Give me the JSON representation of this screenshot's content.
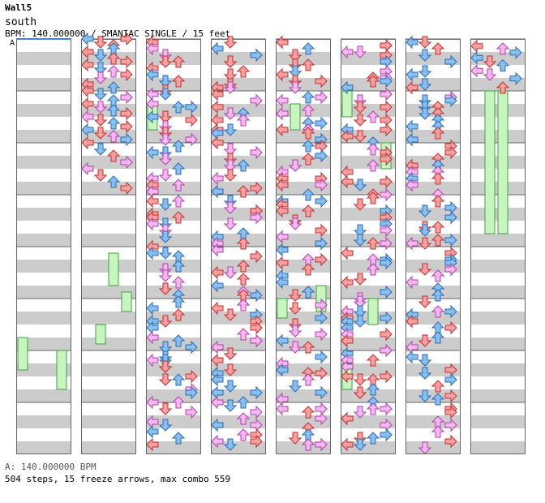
{
  "song": {
    "title": "Wall5",
    "artist": "south",
    "info": "BPM: 140.000000 / SMANIAC SINGLE / 15 feet",
    "section_marker": "A"
  },
  "footer": {
    "bpm_line": "A: 140.000000 BPM",
    "stats_line": "504 steps, 15 freeze arrows, max combo 559"
  },
  "colors": {
    "quarter_fill": "#f4a0a0",
    "quarter_stroke": "#c03030",
    "eighth_fill": "#88bff0",
    "eighth_stroke": "#2a6cb0",
    "sixteenth_fill": "#f4b8f0",
    "sixteenth_stroke": "#b040a8",
    "freeze_fill": "#c8f4c0",
    "freeze_stroke": "#40a040",
    "measure_shade": "#cccccc",
    "column_border": "#666666",
    "start_line": "#4080ff"
  },
  "chart_data": {
    "type": "dance-step-chart",
    "lanes": [
      "left",
      "down",
      "up",
      "right"
    ],
    "columns": 8,
    "measures_per_column": 8,
    "beats_per_measure": 4,
    "total_steps": 504,
    "freeze_arrows": 15,
    "max_combo": 559,
    "bpm": 140,
    "notes": [
      [
        [
          37.0,
          "L",
          "q"
        ],
        [
          37.0,
          "R",
          "e"
        ],
        [
          37.5,
          "D",
          "q"
        ],
        [
          37.5,
          "U",
          "e"
        ],
        [
          38.0,
          "U",
          "q"
        ],
        [
          38.25,
          "R",
          "q"
        ],
        [
          38.5,
          "L",
          "q"
        ],
        [
          38.75,
          "R",
          "e"
        ],
        [
          39.0,
          "L",
          "e"
        ],
        [
          39.5,
          "D",
          "q"
        ],
        [
          39.75,
          "U",
          "e"
        ],
        [
          40.0,
          "L",
          "q"
        ],
        [
          40.25,
          "D",
          "q"
        ],
        [
          40.5,
          "U",
          "e"
        ],
        [
          41.0,
          "D",
          "q"
        ],
        [
          41.5,
          "L",
          "q"
        ],
        [
          41.75,
          "U",
          "e"
        ],
        [
          42.0,
          "R",
          "s"
        ],
        [
          42.25,
          "R",
          "s"
        ],
        [
          42.5,
          "D",
          "e"
        ],
        [
          42.75,
          "R",
          "e"
        ]
      ],
      [
        [
          0.0,
          "L",
          "e"
        ],
        [
          0.0,
          "R",
          "q"
        ],
        [
          0.25,
          "D",
          "q"
        ],
        [
          0.5,
          "U",
          "q"
        ],
        [
          0.75,
          "U",
          "e"
        ],
        [
          1.0,
          "L",
          "q"
        ],
        [
          1.25,
          "D",
          "e"
        ],
        [
          1.5,
          "U",
          "q"
        ],
        [
          1.75,
          "R",
          "q"
        ],
        [
          2.0,
          "L",
          "q"
        ],
        [
          2.25,
          "D",
          "e"
        ],
        [
          2.5,
          "U",
          "s"
        ],
        [
          2.75,
          "R",
          "q"
        ],
        [
          3.0,
          "D",
          "s"
        ],
        [
          3.5,
          "L",
          "q"
        ],
        [
          3.75,
          "U",
          "e"
        ],
        [
          4.0,
          "L",
          "q"
        ],
        [
          4.25,
          "D",
          "e"
        ],
        [
          4.5,
          "R",
          "s"
        ],
        [
          4.75,
          "U",
          "e"
        ],
        [
          5.0,
          "L",
          "q"
        ],
        [
          5.25,
          "D",
          "s"
        ],
        [
          5.5,
          "U",
          "e"
        ],
        [
          5.75,
          "R",
          "q"
        ],
        [
          6.0,
          "L",
          "s"
        ],
        [
          6.25,
          "D",
          "q"
        ],
        [
          6.5,
          "U",
          "e"
        ],
        [
          6.75,
          "R",
          "q"
        ],
        [
          7.0,
          "L",
          "e"
        ],
        [
          7.25,
          "D",
          "q"
        ],
        [
          7.5,
          "U",
          "s"
        ],
        [
          7.75,
          "R",
          "e"
        ],
        [
          8.0,
          "L",
          "q"
        ],
        [
          8.5,
          "D",
          "e"
        ],
        [
          9.0,
          "U",
          "q"
        ],
        [
          9.5,
          "R",
          "s"
        ],
        [
          10.0,
          "L",
          "s"
        ],
        [
          10.5,
          "D",
          "q"
        ],
        [
          11.0,
          "U",
          "e"
        ],
        [
          11.5,
          "R",
          "q"
        ]
      ]
    ]
  }
}
